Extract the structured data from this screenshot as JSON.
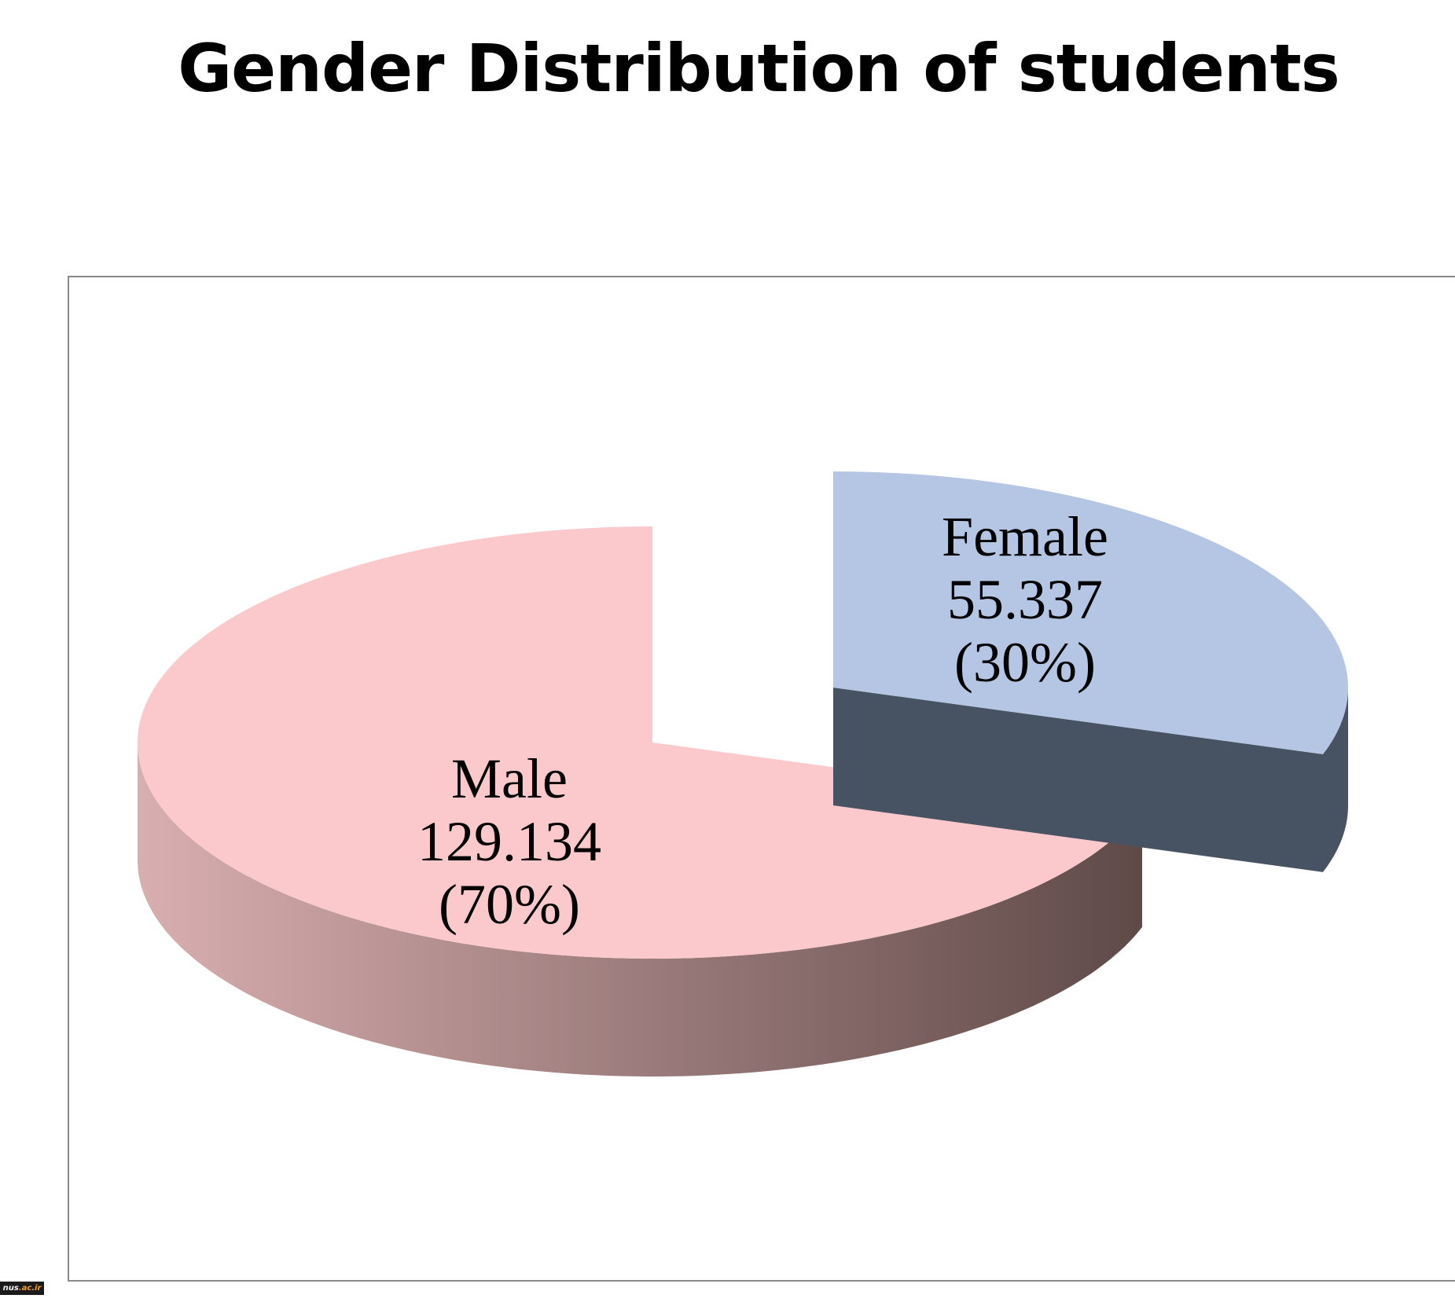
{
  "chart_data": {
    "type": "pie",
    "title": "Gender Distribution of students",
    "categories": [
      "Male",
      "Female"
    ],
    "values": [
      129.134,
      55.337
    ],
    "percent_labels": [
      "(70%)",
      "(30%)"
    ],
    "value_labels": [
      "129.134",
      "55.337"
    ],
    "colors": {
      "male_top": "#fbc9cc",
      "male_side_light": "#d9aeb0",
      "male_side_dark": "#5f4a48",
      "female_top": "#b4c6e4",
      "female_side": "#475262"
    },
    "exploded": "Female",
    "style": "3d",
    "legend": "none"
  },
  "watermark": {
    "prefix": "nus",
    "suffix": ".ac.ir"
  }
}
